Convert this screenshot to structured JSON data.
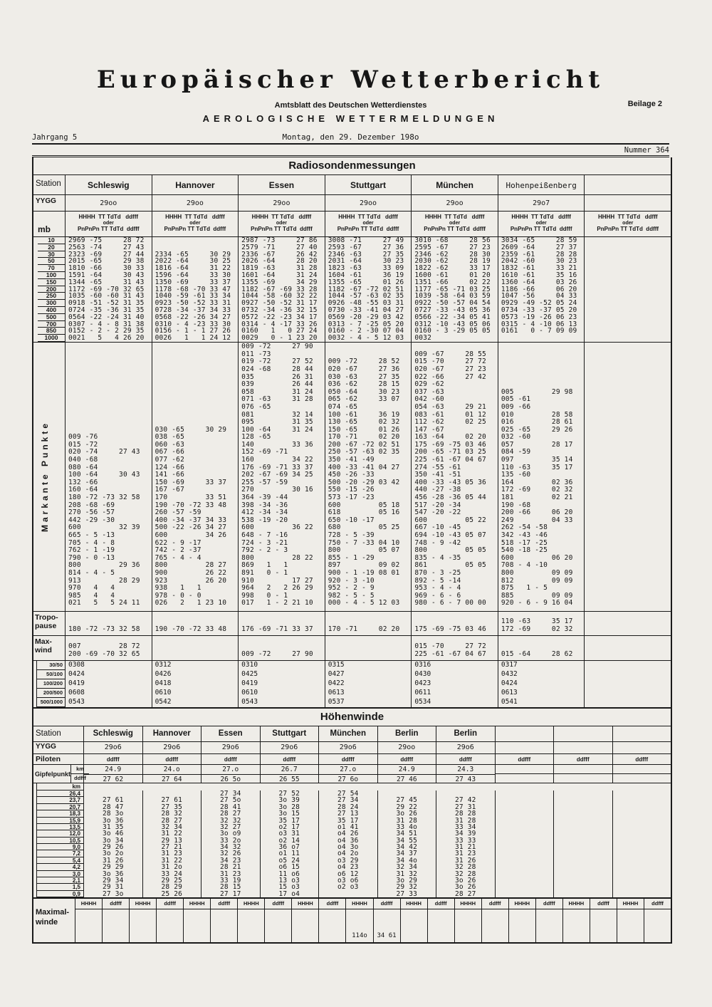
{
  "header": {
    "jahrgang": "Jahrgang 5",
    "title": "Europäischer Wetterbericht",
    "subtitle": "Amtsblatt des Deutschen Wetterdienstes",
    "beilage": "Beilage 2",
    "subject": "AEROLOGISCHE WETTERMELDUNGEN",
    "date": "Montag, den 29. Dezember 198o",
    "nummer": "Nummer 364"
  },
  "radiosonde": {
    "title": "Radiosondenmessungen",
    "labels": {
      "station": "Station",
      "yygg": "YYGG",
      "mb": "mb",
      "tropopause1": "Tropo-",
      "tropopause2": "pause",
      "maxwind1": "Max-",
      "maxwind2": "wind"
    },
    "sub_header": {
      "line1": "HHHH  TT TdTd   ddfff",
      "oder": "oder",
      "line2": "PnPnPn TT TdTd  ddfff"
    },
    "markante_label": "Markante Punkte",
    "stations": [
      {
        "name": "Schleswig",
        "yygg": "29oo"
      },
      {
        "name": "Hannover",
        "yygg": "29oo"
      },
      {
        "name": "Essen",
        "yygg": "29oo"
      },
      {
        "name": "Stuttgart",
        "yygg": "29oo"
      },
      {
        "name": "München",
        "yygg": "29oo"
      },
      {
        "name": "Hohenpeißenberg",
        "yygg": "29o7"
      },
      {
        "name": "",
        "yygg": ""
      }
    ],
    "levels": [
      {
        "mb": "10",
        "cells": [
          "2969 -75     28 72",
          "",
          "2987 -73     27 86",
          "3008 -71     27 49",
          "3010 -68     28 56",
          "3034 -65     28 59",
          ""
        ]
      },
      {
        "mb": "20",
        "cells": [
          "2563 -74     27 43",
          "",
          "2579 -71     27 40",
          "2593 -67     27 36",
          "2595 -67     27 23",
          "2609 -64     27 37",
          ""
        ]
      },
      {
        "mb": "30",
        "cells": [
          "2323 -69     27 44",
          "2334 -65     30 29",
          "2336 -67     26 42",
          "2346 -63     27 35",
          "2346 -62     28 30",
          "2359 -61     28 28",
          ""
        ]
      },
      {
        "mb": "50",
        "cells": [
          "2015 -65     29 38",
          "2022 -64     30 25",
          "2026 -64     28 20",
          "2031 -64     30 23",
          "2030 -62     28 19",
          "2042 -60     30 23",
          ""
        ]
      },
      {
        "mb": "70",
        "cells": [
          "1810 -66     30 33",
          "1816 -64     31 22",
          "1819 -63     31 28",
          "1823 -63     33 09",
          "1822 -62     33 17",
          "1832 -61     33 21",
          ""
        ]
      },
      {
        "mb": "100",
        "cells": [
          "1591 -64     30 43",
          "1596 -64     33 30",
          "1601 -64     31 24",
          "1604 -61     36 19",
          "1600 -61     01 20",
          "1610 -61     35 16",
          ""
        ]
      },
      {
        "mb": "150",
        "cells": [
          "1344 -65     31 43",
          "1350 -69     33 37",
          "1355 -69     34 29",
          "1355 -65     01 26",
          "1351 -66     02 22",
          "1360 -64     03 26",
          ""
        ]
      },
      {
        "mb": "200",
        "cells": [
          "1172 -69 -70 32 65",
          "1178 -68 -70 33 47",
          "1182 -67 -69 33 28",
          "1182 -67 -72 02 51",
          "1177 -65 -71 03 25",
          "1186 -66     06 20",
          ""
        ]
      },
      {
        "mb": "250",
        "cells": [
          "1035 -60 -60 31 43",
          "1040 -59 -61 33 34",
          "1044 -58 -60 32 22",
          "1044 -57 -63 02 35",
          "1039 -58 -64 03 59",
          "1047 -56     04 33",
          ""
        ]
      },
      {
        "mb": "300",
        "cells": [
          "0918 -51 -52 31 35",
          "0923 -50 -52 33 31",
          "0927 -50 -52 31 17",
          "0926 -48 -55 03 31",
          "0922 -50 -57 04 54",
          "0929 -49 -52 05 24",
          ""
        ]
      },
      {
        "mb": "400",
        "cells": [
          "0724 -35 -36 31 35",
          "0728 -34 -37 34 33",
          "0732 -34 -36 32 15",
          "0730 -33 -41 04 27",
          "0727 -33 -43 05 36",
          "0734 -33 -37 05 20",
          ""
        ]
      },
      {
        "mb": "500",
        "cells": [
          "0564 -22 -24 31 40",
          "0568 -22 -26 34 27",
          "0572 -22 -23 34 17",
          "0569 -20 -29 03 42",
          "0566 -22 -34 05 41",
          "0573 -19 -26 06 23",
          ""
        ]
      },
      {
        "mb": "700",
        "cells": [
          "0307 - 4 - 8 31 38",
          "0310 - 4 -23 33 30",
          "0314 - 4 -17 33 26",
          "0313 - 7 -25 05 20",
          "0312 -10 -43 05 06",
          "0315 - 4 -10 06 13",
          ""
        ]
      },
      {
        "mb": "850",
        "cells": [
          "0152 - 2 - 2 29 35",
          "0156 - 1 - 1 27 26",
          "0160   1   0 27 24",
          "0160 - 2 -30 07 04",
          "0160 - 3 -29 05 05",
          "0161   0 - 7 09 09",
          ""
        ]
      },
      {
        "mb": "1000",
        "cells": [
          "0021   5   4 26 20",
          "0026   1   1 24 12",
          "0029   0 - 1 23 20",
          "0032 - 4 - 5 12 03",
          "0032",
          "",
          ""
        ]
      }
    ],
    "markante": [
      {
        "lines": [
          "009 -76",
          "015 -72",
          "020 -74     27 43",
          "040 -68",
          "080 -64",
          "100 -64     30 43",
          "132 -66",
          "160 -64",
          "180 -72 -73 32 58",
          "208 -68 -69",
          "270 -56 -57",
          "442 -29 -30",
          "600         32 39",
          "665 - 5 -13",
          "705 - 4 - 8",
          "762 - 1 -19",
          "790 - 0 -13",
          "800         29 36",
          "814 - 4 - 5",
          "913         28 29",
          "970   4   4",
          "985   4   4",
          "021   5   5 24 11"
        ]
      },
      {
        "lines": [
          "030 -65     30 29",
          "038 -65",
          "060 -63",
          "067 -66",
          "077 -62",
          "124 -66",
          "141 -66",
          "150 -69     33 37",
          "167 -67",
          "170         33 51",
          "190 -70 -72 33 48",
          "260 -57 -59",
          "400 -34 -37 34 33",
          "500 -22 -26 34 27",
          "600         34 26",
          "622 - 9 -17",
          "742 - 2 -37",
          "765 - 4 - 4",
          "800         28 27",
          "900         26 22",
          "923         26 20",
          "938   1   1",
          "978 - 0 - 0",
          "026   2   1 23 10"
        ]
      },
      {
        "lines": [
          "009 -72     27 90",
          "011 -73",
          "019 -72     27 52",
          "024 -68     28 44",
          "035         26 31",
          "039         26 44",
          "058         31 24",
          "071 -63     31 28",
          "076 -65",
          "081         32 14",
          "095         31 35",
          "100 -64     31 24",
          "128 -65",
          "140         33 36",
          "152 -69 -71",
          "160         34 22",
          "176 -69 -71 33 37",
          "202 -67 -69 34 25",
          "255 -57 -59",
          "270         30 16",
          "364 -39 -44",
          "398 -34 -36",
          "412 -34 -34",
          "538 -19 -20",
          "600         36 22",
          "648 - 7 -16",
          "724 - 3 -21",
          "792 - 2 - 3",
          "800         28 22",
          "869   1   1",
          "891   0 - 1",
          "910         17 27",
          "964   2   2 26 29",
          "998   0 - 1",
          "017   1 - 2 21 10"
        ]
      },
      {
        "lines": [
          "009 -72     28 52",
          "020 -67     27 36",
          "030 -63     27 35",
          "036 -62     28 15",
          "050 -64     30 23",
          "065 -62     33 07",
          "074 -65",
          "100 -61     36 19",
          "130 -65     02 32",
          "150 -65     01 26",
          "170 -71     02 20",
          "200 -67 -72 02 51",
          "250 -57 -63 02 35",
          "350 -41 -49",
          "400 -33 -41 04 27",
          "450 -26 -33",
          "500 -20 -29 03 42",
          "550 -15 -26",
          "573 -17 -23",
          "600         05 18",
          "618         05 16",
          "650 -10 -17",
          "680         05 25",
          "728 - 5 -39",
          "750 - 7 -33 04 10",
          "800         05 07",
          "855 - 1 -29",
          "897         09 02",
          "900 - 1 -19 08 01",
          "920 - 3 -10",
          "952 - 2 - 9",
          "982 - 5 - 5",
          "000 - 4 - 5 12 03"
        ]
      },
      {
        "lines": [
          "009 -67     28 55",
          "015 -70     27 72",
          "020 -67     27 23",
          "022 -66     27 42",
          "029 -62",
          "037 -63",
          "042 -60",
          "054 -63     29 21",
          "083 -61     01 12",
          "112 -62     02 25",
          "147 -67",
          "163 -64     02 20",
          "175 -69 -75 03 46",
          "200 -65 -71 03 25",
          "225 -61 -67 04 67",
          "274 -55 -61",
          "350 -41 -51",
          "400 -33 -43 05 36",
          "440 -27 -38",
          "456 -28 -36 05 44",
          "517 -20 -34",
          "547 -20 -22",
          "600         05 22",
          "667 -10 -45",
          "694 -10 -43 05 07",
          "748 - 9 -42",
          "800         05 05",
          "835 - 4 -35",
          "861         05 05",
          "870 - 3 -25",
          "892 - 5 -14",
          "953 - 4 - 4",
          "969 - 6 - 6",
          "980 - 6 - 7 00 00"
        ]
      },
      {
        "lines": [
          "005         29 98",
          "005 -61",
          "009 -66",
          "010         28 58",
          "016         28 61",
          "025 -65     29 26",
          "032 -60",
          "057         28 17",
          "084 -59",
          "097         35 14",
          "110 -63     35 17",
          "135 -60",
          "164         02 36",
          "172 -69     02 32",
          "181         02 21",
          "190 -68",
          "200 -66     06 20",
          "249         04 33",
          "262 -54 -58",
          "342 -43 -46",
          "518 -17 -25",
          "540 -18 -25",
          "600         06 20",
          "708 - 4 -10",
          "800         09 09",
          "812         09 09",
          "875   1 - 5",
          "885         09 09",
          "920 - 6 - 9 16 04"
        ]
      },
      {
        "lines": []
      }
    ],
    "tropopause": [
      {
        "lines": [
          "180 -72 -73 32 58"
        ]
      },
      {
        "lines": [
          "190 -70 -72 33 48"
        ]
      },
      {
        "lines": [
          "176 -69 -71 33 37"
        ]
      },
      {
        "lines": [
          "170 -71     02 20"
        ]
      },
      {
        "lines": [
          "175 -69 -75 03 46"
        ]
      },
      {
        "lines": [
          "110 -63     35 17",
          "172 -69     02 32"
        ]
      },
      {
        "lines": []
      }
    ],
    "maxwind": [
      {
        "lines": [
          "007         28 72",
          "200 -69 -70 32 65"
        ]
      },
      {
        "lines": []
      },
      {
        "lines": [
          "009 -72     27 90"
        ]
      },
      {
        "lines": []
      },
      {
        "lines": [
          "015 -70     27 72",
          "225 -61 -67 04 67"
        ]
      },
      {
        "lines": [
          "015 -64     28 62"
        ]
      },
      {
        "lines": []
      }
    ],
    "shear": [
      {
        "label": "30/50",
        "cells": [
          "0308",
          "0312",
          "0310",
          "0315",
          "0316",
          "0317",
          ""
        ]
      },
      {
        "label": "50/100",
        "cells": [
          "0424",
          "0426",
          "0425",
          "0427",
          "0430",
          "0432",
          ""
        ]
      },
      {
        "label": "100/200",
        "cells": [
          "0419",
          "0418",
          "0419",
          "0422",
          "0423",
          "0424",
          ""
        ]
      },
      {
        "label": "200/500",
        "cells": [
          "0608",
          "0610",
          "0610",
          "0613",
          "0611",
          "0613",
          ""
        ]
      },
      {
        "label": "500/1000",
        "cells": [
          "0543",
          "0542",
          "0543",
          "0537",
          "0534",
          "0541",
          ""
        ]
      }
    ]
  },
  "hoehenwinde": {
    "title": "Höhenwinde",
    "labels": {
      "station": "Station",
      "yygg": "YYGG",
      "piloten": "Piloten",
      "gipfelpunkt": "Gipfelpunkt",
      "km": "km",
      "ddfff": "ddfff",
      "km_header": "km",
      "maximal1": "Maximal-",
      "maximal2": "winde"
    },
    "stations": [
      {
        "name": "Schleswig",
        "yygg": "29o6",
        "piloten": "ddfff",
        "gipfel_km": "24.9",
        "gipfel_ddfff": "27 62"
      },
      {
        "name": "Hannover",
        "yygg": "29o6",
        "piloten": "ddfff",
        "gipfel_km": "24.o",
        "gipfel_ddfff": "27 64"
      },
      {
        "name": "Essen",
        "yygg": "29o6",
        "piloten": "ddfff",
        "gipfel_km": "27.o",
        "gipfel_ddfff": "26 5o"
      },
      {
        "name": "Stuttgart",
        "yygg": "29o6",
        "piloten": "ddfff",
        "gipfel_km": "26.7",
        "gipfel_ddfff": "26 55"
      },
      {
        "name": "München",
        "yygg": "29o6",
        "piloten": "ddfff",
        "gipfel_km": "27.o",
        "gipfel_ddfff": "27 6o"
      },
      {
        "name": "Berlin",
        "yygg": "29oo",
        "piloten": "ddfff",
        "gipfel_km": "24.9",
        "gipfel_ddfff": "27 46"
      },
      {
        "name": "Berlin",
        "yygg": "29o6",
        "piloten": "ddfff",
        "gipfel_km": "24.3",
        "gipfel_ddfff": "27 43"
      },
      {
        "name": "",
        "yygg": "",
        "piloten": "ddfff",
        "gipfel_km": "",
        "gipfel_ddfff": ""
      },
      {
        "name": "",
        "yygg": "",
        "piloten": "ddfff",
        "gipfel_km": "",
        "gipfel_ddfff": ""
      },
      {
        "name": "",
        "yygg": "",
        "piloten": "ddfff",
        "gipfel_km": "",
        "gipfel_ddfff": ""
      }
    ],
    "rows": [
      {
        "km": "26,4",
        "cells": [
          "",
          "",
          "27 34",
          "27 52",
          "27 54",
          "",
          "",
          "",
          "",
          ""
        ]
      },
      {
        "km": "23,7",
        "cells": [
          "27 61",
          "27 61",
          "27 5o",
          "3o 39",
          "27 34",
          "27 45",
          "27 42",
          "",
          "",
          ""
        ]
      },
      {
        "km": "20,7",
        "cells": [
          "28 47",
          "27 35",
          "28 41",
          "3o 28",
          "28 24",
          "29 22",
          "27 31",
          "",
          "",
          ""
        ]
      },
      {
        "km": "18,3",
        "cells": [
          "28 3o",
          "28 32",
          "28 27",
          "3o 15",
          "27 13",
          "3o 26",
          "28 28",
          "",
          "",
          ""
        ]
      },
      {
        "km": "15,9",
        "cells": [
          "3o 36",
          "28 27",
          "32 32",
          "35 17",
          "35 17",
          "31 28",
          "31 28",
          "",
          "",
          ""
        ]
      },
      {
        "km": "13,5",
        "cells": [
          "31 35",
          "32 34",
          "32 27",
          "o2 17",
          "o1 41",
          "33 4o",
          "33 34",
          "",
          "",
          ""
        ]
      },
      {
        "km": "12,0",
        "cells": [
          "3o 46",
          "31 22",
          "3o o9",
          "o3 31",
          "o4 26",
          "34 51",
          "34 39",
          "",
          "",
          ""
        ]
      },
      {
        "km": "10,5",
        "cells": [
          "3o 34",
          "29 13",
          "33 2o",
          "o2 14",
          "o4 36",
          "34 55",
          "33 33",
          "",
          "",
          ""
        ]
      },
      {
        "km": "9,0",
        "cells": [
          "29 26",
          "27 21",
          "34 32",
          "36 o7",
          "o4 3o",
          "34 42",
          "31 21",
          "",
          "",
          ""
        ]
      },
      {
        "km": "7,2",
        "cells": [
          "3o 2o",
          "31 23",
          "32 26",
          "o1 11",
          "o4 2o",
          "34 37",
          "31 23",
          "",
          "",
          ""
        ]
      },
      {
        "km": "5,4",
        "cells": [
          "31 26",
          "31 22",
          "34 23",
          "o5 24",
          "o3 29",
          "34 4o",
          "31 26",
          "",
          "",
          ""
        ]
      },
      {
        "km": "4,2",
        "cells": [
          "29 29",
          "31 2o",
          "28 21",
          "o6 15",
          "o4 23",
          "32 34",
          "32 28",
          "",
          "",
          ""
        ]
      },
      {
        "km": "3,0",
        "cells": [
          "3o 36",
          "33 24",
          "31 23",
          "11 o6",
          "o6 12",
          "31 32",
          "32 28",
          "",
          "",
          ""
        ]
      },
      {
        "km": "2,1",
        "cells": [
          "29 34",
          "29 25",
          "33 19",
          "13 o3",
          "o3 o6",
          "3o 29",
          "3o 26",
          "",
          "",
          ""
        ]
      },
      {
        "km": "1,5",
        "cells": [
          "29 31",
          "28 29",
          "28 15",
          "15 o3",
          "o2 o3",
          "29 32",
          "3o 26",
          "",
          "",
          ""
        ]
      },
      {
        "km": "0,9",
        "cells": [
          "27 3o",
          "25 26",
          "27 17",
          "17 o4",
          "",
          "27 33",
          "28 27",
          "",
          "",
          ""
        ]
      }
    ],
    "maximal": {
      "pairs": [
        {
          "h_label": "HHHH",
          "d_label": "ddfff",
          "h": "",
          "d": ""
        },
        {
          "h_label": "HHHH",
          "d_label": "ddfff",
          "h": "",
          "d": ""
        },
        {
          "h_label": "HHHH",
          "d_label": "ddfff",
          "h": "",
          "d": ""
        },
        {
          "h_label": "HHHH",
          "d_label": "ddfff",
          "h": "",
          "d": ""
        },
        {
          "h_label": "HHHH",
          "d_label": "ddfff",
          "h": "",
          "d": ""
        },
        {
          "h_label": "HHHH",
          "d_label": "ddfff",
          "h": "114o",
          "d": "34 61"
        },
        {
          "h_label": "HHHH",
          "d_label": "ddfff",
          "h": "",
          "d": ""
        },
        {
          "h_label": "HHHH",
          "d_label": "ddfff",
          "h": "",
          "d": ""
        },
        {
          "h_label": "HHHH",
          "d_label": "ddfff",
          "h": "",
          "d": ""
        },
        {
          "h_label": "HHHH",
          "d_label": "ddfff",
          "h": "",
          "d": ""
        },
        {
          "h_label": "HHHH",
          "d_label": "ddfff",
          "h": "",
          "d": ""
        }
      ]
    }
  }
}
